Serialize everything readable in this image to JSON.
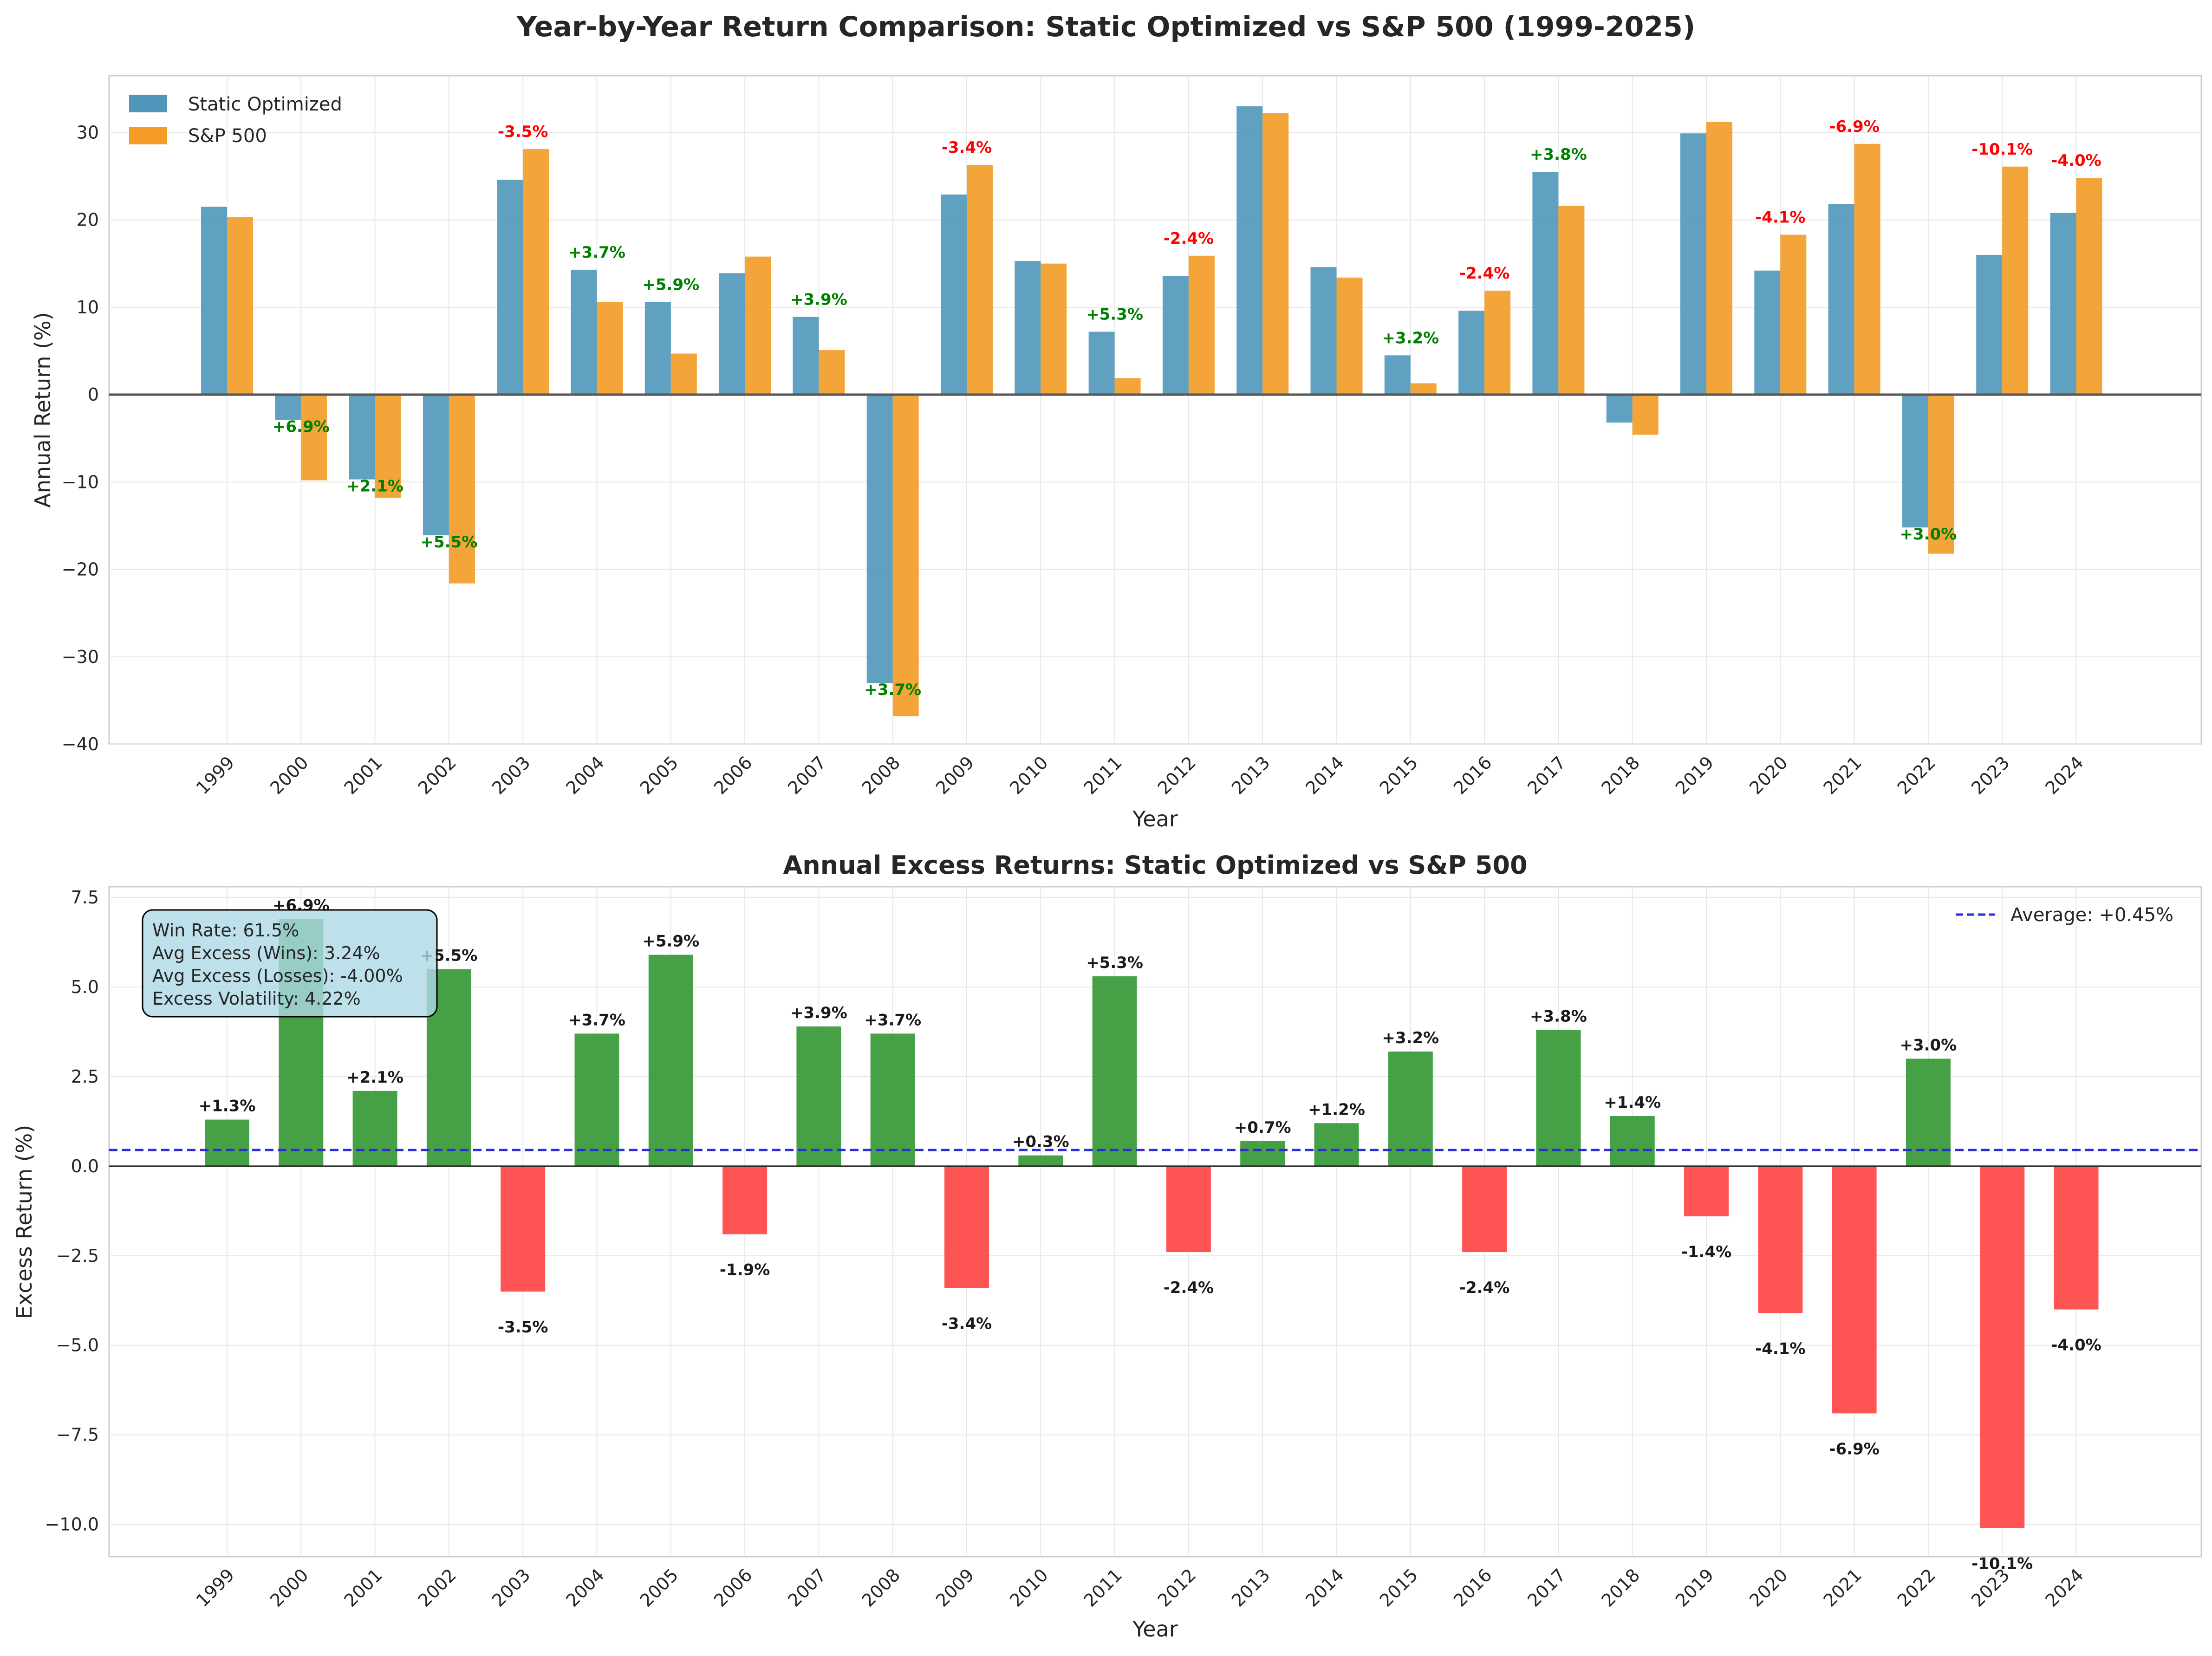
{
  "title": "Year-by-Year Return Comparison: Static Optimized vs S&P 500 (1999-2025)",
  "colors": {
    "static": "#4f97ba",
    "sp500": "#f39b25",
    "positive": "#3c9c3c",
    "negative": "#ff4b4b",
    "label_positive": "#008000",
    "label_negative": "#ff0000",
    "average_line": "#2b2bdc",
    "stats_box": "#add8e6"
  },
  "chart_data": [
    {
      "type": "bar",
      "title": "",
      "xlabel": "Year",
      "ylabel": "Annual Return (%)",
      "ylim": [
        -40,
        36.5
      ],
      "yticks": [
        -40,
        -30,
        -20,
        -10,
        0,
        10,
        20,
        30
      ],
      "ytick_labels": [
        "−40",
        "−30",
        "−20",
        "−10",
        "0",
        "10",
        "20",
        "30"
      ],
      "grid": true,
      "legend_position": "top-left",
      "categories": [
        "1999",
        "2000",
        "2001",
        "2002",
        "2003",
        "2004",
        "2005",
        "2006",
        "2007",
        "2008",
        "2009",
        "2010",
        "2011",
        "2012",
        "2013",
        "2014",
        "2015",
        "2016",
        "2017",
        "2018",
        "2019",
        "2020",
        "2021",
        "2022",
        "2023",
        "2024"
      ],
      "series": [
        {
          "name": "Static Optimized",
          "values": [
            21.5,
            -2.9,
            -9.7,
            -16.1,
            24.6,
            14.3,
            10.6,
            13.9,
            8.9,
            -33.0,
            22.9,
            15.3,
            7.2,
            13.6,
            33.0,
            14.6,
            4.5,
            9.6,
            25.5,
            -3.2,
            29.9,
            14.2,
            21.8,
            -15.2,
            16.0,
            20.8
          ]
        },
        {
          "name": "S&P 500",
          "values": [
            20.3,
            -9.8,
            -11.8,
            -21.6,
            28.1,
            10.6,
            4.7,
            15.8,
            5.1,
            -36.8,
            26.3,
            15.0,
            1.9,
            15.9,
            32.2,
            13.4,
            1.3,
            11.9,
            21.6,
            -4.6,
            31.2,
            18.3,
            28.7,
            -18.2,
            26.1,
            24.8
          ]
        }
      ],
      "annotations": [
        {
          "year": "2000",
          "text": "+6.9%",
          "positive": true
        },
        {
          "year": "2001",
          "text": "+2.1%",
          "positive": true
        },
        {
          "year": "2002",
          "text": "+5.5%",
          "positive": true
        },
        {
          "year": "2003",
          "text": "-3.5%",
          "positive": false
        },
        {
          "year": "2004",
          "text": "+3.7%",
          "positive": true
        },
        {
          "year": "2005",
          "text": "+5.9%",
          "positive": true
        },
        {
          "year": "2007",
          "text": "+3.9%",
          "positive": true
        },
        {
          "year": "2008",
          "text": "+3.7%",
          "positive": true
        },
        {
          "year": "2009",
          "text": "-3.4%",
          "positive": false
        },
        {
          "year": "2011",
          "text": "+5.3%",
          "positive": true
        },
        {
          "year": "2012",
          "text": "-2.4%",
          "positive": false
        },
        {
          "year": "2015",
          "text": "+3.2%",
          "positive": true
        },
        {
          "year": "2016",
          "text": "-2.4%",
          "positive": false
        },
        {
          "year": "2017",
          "text": "+3.8%",
          "positive": true
        },
        {
          "year": "2020",
          "text": "-4.1%",
          "positive": false
        },
        {
          "year": "2021",
          "text": "-6.9%",
          "positive": false
        },
        {
          "year": "2022",
          "text": "+3.0%",
          "positive": true
        },
        {
          "year": "2023",
          "text": "-10.1%",
          "positive": false
        },
        {
          "year": "2024",
          "text": "-4.0%",
          "positive": false
        }
      ]
    },
    {
      "type": "bar",
      "title": "Annual Excess Returns: Static Optimized vs S&P 500",
      "xlabel": "Year",
      "ylabel": "Excess Return (%)",
      "ylim": [
        -10.9,
        7.8
      ],
      "yticks": [
        -10.0,
        -7.5,
        -5.0,
        -2.5,
        0.0,
        2.5,
        5.0,
        7.5
      ],
      "ytick_labels": [
        "−10.0",
        "−7.5",
        "−5.0",
        "−2.5",
        "0.0",
        "2.5",
        "5.0",
        "7.5"
      ],
      "grid": true,
      "legend_position": "top-right",
      "categories": [
        "1999",
        "2000",
        "2001",
        "2002",
        "2003",
        "2004",
        "2005",
        "2006",
        "2007",
        "2008",
        "2009",
        "2010",
        "2011",
        "2012",
        "2013",
        "2014",
        "2015",
        "2016",
        "2017",
        "2018",
        "2019",
        "2020",
        "2021",
        "2022",
        "2023",
        "2024"
      ],
      "values": [
        1.3,
        6.9,
        2.1,
        5.5,
        -3.5,
        3.7,
        5.9,
        -1.9,
        3.9,
        3.7,
        -3.4,
        0.3,
        5.3,
        -2.4,
        0.7,
        1.2,
        3.2,
        -2.4,
        3.8,
        1.4,
        -1.4,
        -4.1,
        -6.9,
        3.0,
        -10.1,
        -4.0
      ],
      "value_labels": [
        "+1.3%",
        "+6.9%",
        "+2.1%",
        "+5.5%",
        "-3.5%",
        "+3.7%",
        "+5.9%",
        "-1.9%",
        "+3.9%",
        "+3.7%",
        "-3.4%",
        "+0.3%",
        "+5.3%",
        "-2.4%",
        "+0.7%",
        "+1.2%",
        "+3.2%",
        "-2.4%",
        "+3.8%",
        "+1.4%",
        "-1.4%",
        "-4.1%",
        "-6.9%",
        "+3.0%",
        "-10.1%",
        "-4.0%"
      ],
      "average": 0.45,
      "average_label": "Average: +0.45%",
      "stats": [
        "Win Rate: 61.5%",
        "Avg Excess (Wins): 3.24%",
        "Avg Excess (Losses): -4.00%",
        "Excess Volatility: 4.22%"
      ]
    }
  ]
}
